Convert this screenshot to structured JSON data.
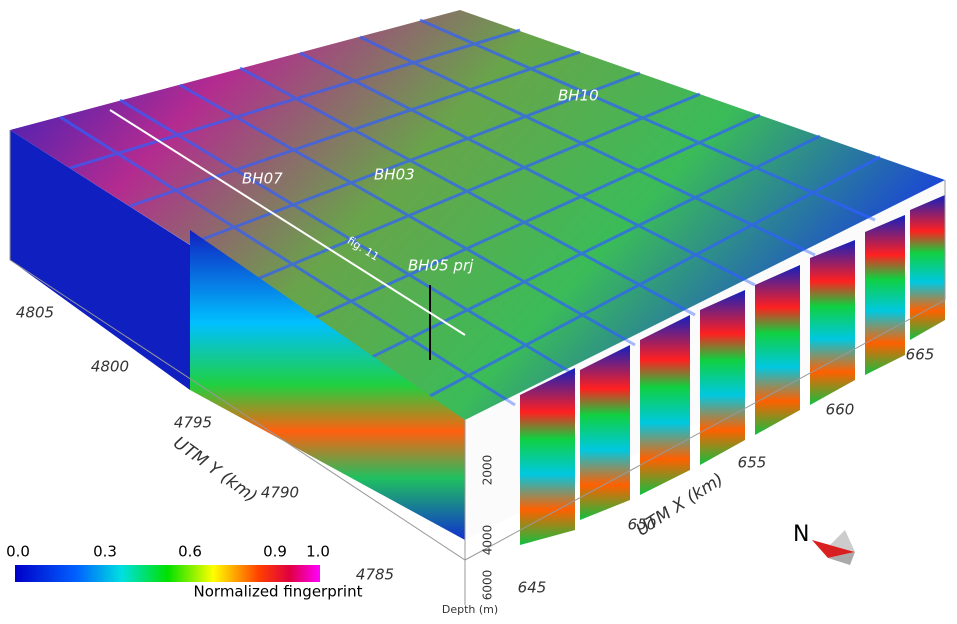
{
  "boreholes": [
    "BH10",
    "BH03",
    "BH07",
    "BH05 prj"
  ],
  "annotation": "fig. 11",
  "y_axis": {
    "label": "UTM Y (km)",
    "ticks": [
      "4805",
      "4800",
      "4795",
      "4790",
      "4785"
    ]
  },
  "x_axis": {
    "label": "UTM X (km)",
    "ticks": [
      "665",
      "660",
      "655",
      "650",
      "645"
    ]
  },
  "depth_axis": {
    "label": "Depth (m)",
    "ticks": [
      "2000",
      "4000",
      "6000"
    ]
  },
  "colorbar": {
    "label": "Normalized fingerprint",
    "ticks": [
      "0.0",
      "0.3",
      "0.6",
      "0.9",
      "1.0"
    ]
  },
  "compass": "N"
}
